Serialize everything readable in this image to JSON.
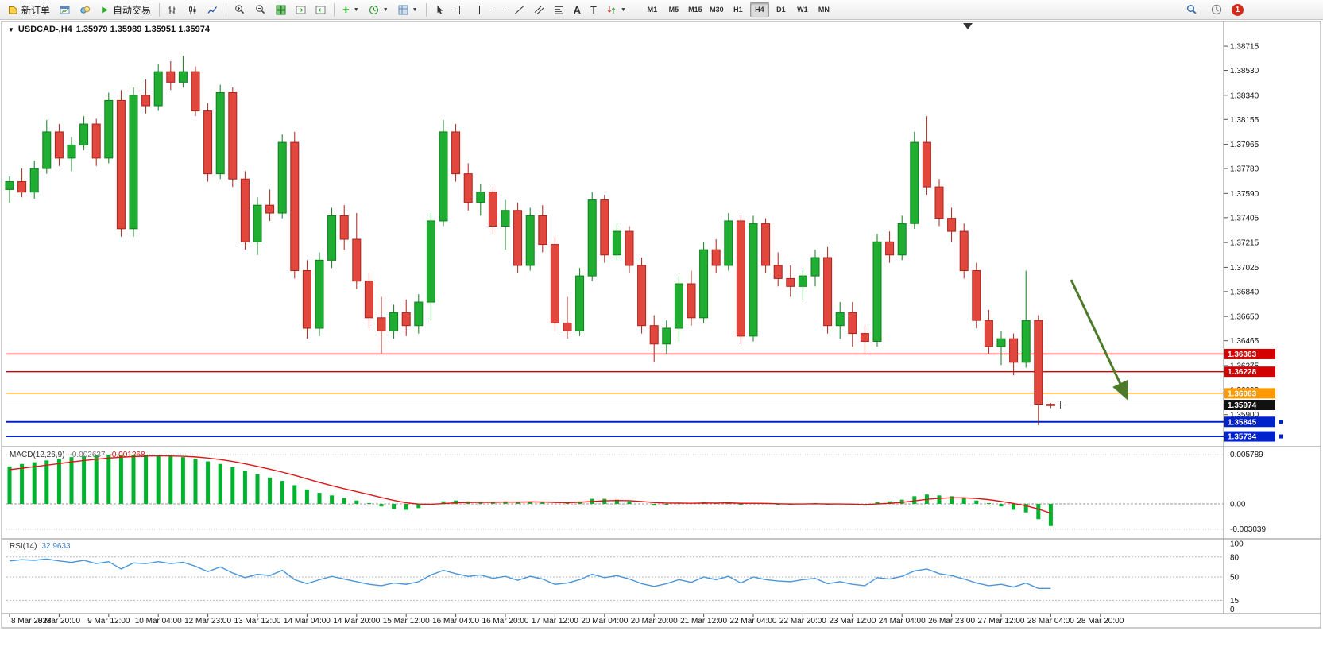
{
  "toolbar": {
    "new_order_label": "新订单",
    "auto_trading_label": "自动交易",
    "timeframes": [
      "M1",
      "M5",
      "M15",
      "M30",
      "H1",
      "H4",
      "D1",
      "W1",
      "MN"
    ],
    "active_timeframe": "H4",
    "notification_badge": "1"
  },
  "chart": {
    "title": "USDCAD-,H4",
    "ohlc_label": "1.35979 1.35989 1.35951 1.35974"
  },
  "colors": {
    "bull": "#1fae32",
    "bull_dark": "#0e7d1f",
    "bear": "#e2473e",
    "bear_dark": "#a8231b",
    "macd_histogram": "#00b22d",
    "macd_signal": "#e01616",
    "rsi_line": "#4a96d9",
    "arrow": "#4c7a28"
  },
  "chart_data": {
    "type": "candlestick",
    "symbol": "USDCAD",
    "timeframe": "H4",
    "current_price": 1.35974,
    "current_bar": {
      "open": 1.35979,
      "high": 1.35989,
      "low": 1.35951,
      "close": 1.35974
    },
    "y_axis_ticks": [
      "1.38715",
      "1.38530",
      "1.38340",
      "1.38155",
      "1.37965",
      "1.37780",
      "1.37590",
      "1.37405",
      "1.37215",
      "1.37025",
      "1.36840",
      "1.36650",
      "1.36465",
      "1.36275",
      "1.36090",
      "1.35900"
    ],
    "x_axis_labels": [
      "8 Mar 2023",
      "8 Mar 20:00",
      "9 Mar 12:00",
      "10 Mar 04:00",
      "12 Mar 23:00",
      "13 Mar 12:00",
      "14 Mar 04:00",
      "14 Mar 20:00",
      "15 Mar 12:00",
      "16 Mar 04:00",
      "16 Mar 20:00",
      "17 Mar 12:00",
      "20 Mar 04:00",
      "20 Mar 20:00",
      "21 Mar 12:00",
      "22 Mar 04:00",
      "22 Mar 20:00",
      "23 Mar 12:00",
      "24 Mar 04:00",
      "26 Mar 23:00",
      "27 Mar 12:00",
      "28 Mar 04:00",
      "28 Mar 20:00"
    ],
    "candles_ohlc": [
      [
        1.3762,
        1.3772,
        1.3752,
        1.3768
      ],
      [
        1.3768,
        1.3778,
        1.3756,
        1.376
      ],
      [
        1.376,
        1.3784,
        1.3755,
        1.3778
      ],
      [
        1.3778,
        1.3815,
        1.3774,
        1.3806
      ],
      [
        1.3806,
        1.3812,
        1.378,
        1.3786
      ],
      [
        1.3786,
        1.3802,
        1.3776,
        1.3796
      ],
      [
        1.3796,
        1.3818,
        1.3792,
        1.3812
      ],
      [
        1.3812,
        1.3816,
        1.378,
        1.3786
      ],
      [
        1.3786,
        1.3836,
        1.3782,
        1.383
      ],
      [
        1.383,
        1.3838,
        1.3726,
        1.3732
      ],
      [
        1.3732,
        1.384,
        1.3726,
        1.3834
      ],
      [
        1.3834,
        1.3846,
        1.382,
        1.3826
      ],
      [
        1.3826,
        1.3858,
        1.3822,
        1.3852
      ],
      [
        1.3852,
        1.386,
        1.3838,
        1.3844
      ],
      [
        1.3844,
        1.3864,
        1.384,
        1.3852
      ],
      [
        1.3852,
        1.3856,
        1.3818,
        1.3822
      ],
      [
        1.3822,
        1.3828,
        1.3768,
        1.3774
      ],
      [
        1.3774,
        1.3842,
        1.377,
        1.3836
      ],
      [
        1.3836,
        1.384,
        1.3764,
        1.377
      ],
      [
        1.377,
        1.3776,
        1.3716,
        1.3722
      ],
      [
        1.3722,
        1.3756,
        1.3712,
        1.375
      ],
      [
        1.375,
        1.3762,
        1.3738,
        1.3744
      ],
      [
        1.3744,
        1.3804,
        1.374,
        1.3798
      ],
      [
        1.3798,
        1.3806,
        1.3694,
        1.37
      ],
      [
        1.37,
        1.3708,
        1.3648,
        1.3656
      ],
      [
        1.3656,
        1.3714,
        1.365,
        1.3708
      ],
      [
        1.3708,
        1.3748,
        1.3702,
        1.3742
      ],
      [
        1.3742,
        1.375,
        1.3716,
        1.3724
      ],
      [
        1.3724,
        1.3744,
        1.3686,
        1.3692
      ],
      [
        1.3692,
        1.3698,
        1.3656,
        1.3664
      ],
      [
        1.3664,
        1.368,
        1.3636,
        1.3654
      ],
      [
        1.3654,
        1.3674,
        1.3648,
        1.3668
      ],
      [
        1.3668,
        1.3678,
        1.365,
        1.3658
      ],
      [
        1.3658,
        1.3682,
        1.3652,
        1.3676
      ],
      [
        1.3676,
        1.3744,
        1.3662,
        1.3738
      ],
      [
        1.3738,
        1.3815,
        1.3734,
        1.3806
      ],
      [
        1.3806,
        1.3812,
        1.3768,
        1.3774
      ],
      [
        1.3774,
        1.3782,
        1.3746,
        1.3752
      ],
      [
        1.3752,
        1.3766,
        1.3742,
        1.376
      ],
      [
        1.376,
        1.3764,
        1.3728,
        1.3734
      ],
      [
        1.3734,
        1.3754,
        1.3716,
        1.3746
      ],
      [
        1.3746,
        1.3752,
        1.3698,
        1.3704
      ],
      [
        1.3704,
        1.3748,
        1.37,
        1.3742
      ],
      [
        1.3742,
        1.375,
        1.3714,
        1.372
      ],
      [
        1.372,
        1.3726,
        1.3654,
        1.366
      ],
      [
        1.366,
        1.368,
        1.3648,
        1.3654
      ],
      [
        1.3654,
        1.3702,
        1.365,
        1.3696
      ],
      [
        1.3696,
        1.376,
        1.3692,
        1.3754
      ],
      [
        1.3754,
        1.3758,
        1.3706,
        1.3712
      ],
      [
        1.3712,
        1.3736,
        1.3708,
        1.373
      ],
      [
        1.373,
        1.3734,
        1.3698,
        1.3704
      ],
      [
        1.3704,
        1.371,
        1.3652,
        1.3658
      ],
      [
        1.3658,
        1.3666,
        1.363,
        1.3644
      ],
      [
        1.3644,
        1.3662,
        1.3636,
        1.3656
      ],
      [
        1.3656,
        1.3696,
        1.3646,
        1.369
      ],
      [
        1.369,
        1.37,
        1.3658,
        1.3664
      ],
      [
        1.3664,
        1.3722,
        1.366,
        1.3716
      ],
      [
        1.3716,
        1.3724,
        1.3698,
        1.3704
      ],
      [
        1.3704,
        1.3744,
        1.37,
        1.3738
      ],
      [
        1.3738,
        1.3742,
        1.3644,
        1.365
      ],
      [
        1.365,
        1.3742,
        1.3646,
        1.3736
      ],
      [
        1.3736,
        1.374,
        1.3698,
        1.3704
      ],
      [
        1.3704,
        1.3714,
        1.3688,
        1.3694
      ],
      [
        1.3694,
        1.3704,
        1.368,
        1.3688
      ],
      [
        1.3688,
        1.3702,
        1.3678,
        1.3696
      ],
      [
        1.3696,
        1.3716,
        1.3688,
        1.371
      ],
      [
        1.371,
        1.3718,
        1.3652,
        1.3658
      ],
      [
        1.3658,
        1.3676,
        1.3648,
        1.3668
      ],
      [
        1.3668,
        1.3676,
        1.3642,
        1.3652
      ],
      [
        1.3652,
        1.3658,
        1.3636,
        1.3646
      ],
      [
        1.3646,
        1.3728,
        1.3642,
        1.3722
      ],
      [
        1.3722,
        1.373,
        1.3706,
        1.3712
      ],
      [
        1.3712,
        1.3742,
        1.3708,
        1.3736
      ],
      [
        1.3736,
        1.3806,
        1.3732,
        1.3798
      ],
      [
        1.3798,
        1.3818,
        1.3758,
        1.3764
      ],
      [
        1.3764,
        1.377,
        1.3734,
        1.374
      ],
      [
        1.374,
        1.3748,
        1.3722,
        1.373
      ],
      [
        1.373,
        1.3736,
        1.3694,
        1.37
      ],
      [
        1.37,
        1.3706,
        1.3656,
        1.3662
      ],
      [
        1.3662,
        1.367,
        1.3636,
        1.3642
      ],
      [
        1.3642,
        1.3654,
        1.3628,
        1.3648
      ],
      [
        1.3648,
        1.3652,
        1.362,
        1.363
      ],
      [
        1.363,
        1.37,
        1.3626,
        1.3662
      ],
      [
        1.3662,
        1.3666,
        1.3582,
        1.3598
      ],
      [
        1.35979,
        1.35989,
        1.35951,
        1.35974
      ]
    ],
    "horizontal_lines": [
      {
        "price": "1.36363",
        "color": "#d40000",
        "type": "resistance"
      },
      {
        "price": "1.36228",
        "color": "#d40000",
        "type": "resistance"
      },
      {
        "price": "1.36063",
        "color": "#ff9900",
        "type": "support"
      },
      {
        "price": "1.35974",
        "color": "#111111",
        "type": "current-price"
      },
      {
        "price": "1.35845",
        "color": "#0022cc",
        "type": "support",
        "handles": true
      },
      {
        "price": "1.35734",
        "color": "#0022cc",
        "type": "support",
        "handles": true
      }
    ],
    "annotation_arrow": {
      "direction": "down-right",
      "color": "#4c7a28"
    },
    "macd": {
      "label": "MACD(12,26,9)",
      "main_value": "-0.002637",
      "signal_value": "-0.001268",
      "axis_labels": [
        "0.005789",
        "0.00",
        "-0.003039"
      ],
      "histogram": [
        0.0044,
        0.0047,
        0.0049,
        0.0051,
        0.0053,
        0.0055,
        0.0056,
        0.0057,
        0.0058,
        0.0058,
        0.0058,
        0.0058,
        0.0057,
        0.0056,
        0.0055,
        0.0053,
        0.005,
        0.0047,
        0.0043,
        0.0039,
        0.0035,
        0.0031,
        0.0027,
        0.0022,
        0.0017,
        0.0013,
        0.001,
        0.0007,
        0.0004,
        0.0001,
        -0.0003,
        -0.0006,
        -0.0007,
        -0.0005,
        -0.0001,
        0.0003,
        0.0004,
        0.0003,
        0.0002,
        0.0002,
        0.0003,
        0.0002,
        0.0003,
        0.0002,
        0.0,
        0.0001,
        0.0003,
        0.0006,
        0.0006,
        0.0005,
        0.0003,
        0.0,
        -0.0002,
        -0.0001,
        0.0001,
        0.0,
        0.0002,
        0.0001,
        0.0002,
        -0.0001,
        0.0001,
        0.0,
        -0.0001,
        -0.0001,
        0.0,
        0.0001,
        -0.0001,
        0.0,
        -0.0001,
        -0.0002,
        0.0002,
        0.0003,
        0.0005,
        0.0009,
        0.0011,
        0.001,
        0.0009,
        0.0007,
        0.0004,
        0.0001,
        -0.0003,
        -0.0007,
        -0.001,
        -0.0018,
        -0.0026
      ]
    },
    "rsi": {
      "label": "RSI(14)",
      "value": "32.9633",
      "levels": [
        "100",
        "80",
        "50",
        "15",
        "0"
      ],
      "series": [
        74,
        76,
        75,
        77,
        74,
        72,
        75,
        70,
        73,
        62,
        71,
        70,
        73,
        70,
        72,
        66,
        58,
        65,
        56,
        49,
        54,
        52,
        60,
        46,
        40,
        46,
        51,
        47,
        43,
        39,
        37,
        41,
        39,
        43,
        53,
        60,
        55,
        51,
        53,
        48,
        51,
        45,
        51,
        47,
        39,
        41,
        46,
        54,
        49,
        52,
        47,
        40,
        36,
        40,
        46,
        42,
        50,
        46,
        51,
        41,
        50,
        46,
        44,
        43,
        46,
        48,
        40,
        43,
        39,
        37,
        49,
        47,
        51,
        59,
        62,
        55,
        52,
        47,
        41,
        37,
        39,
        35,
        41,
        33,
        32.96
      ]
    }
  }
}
